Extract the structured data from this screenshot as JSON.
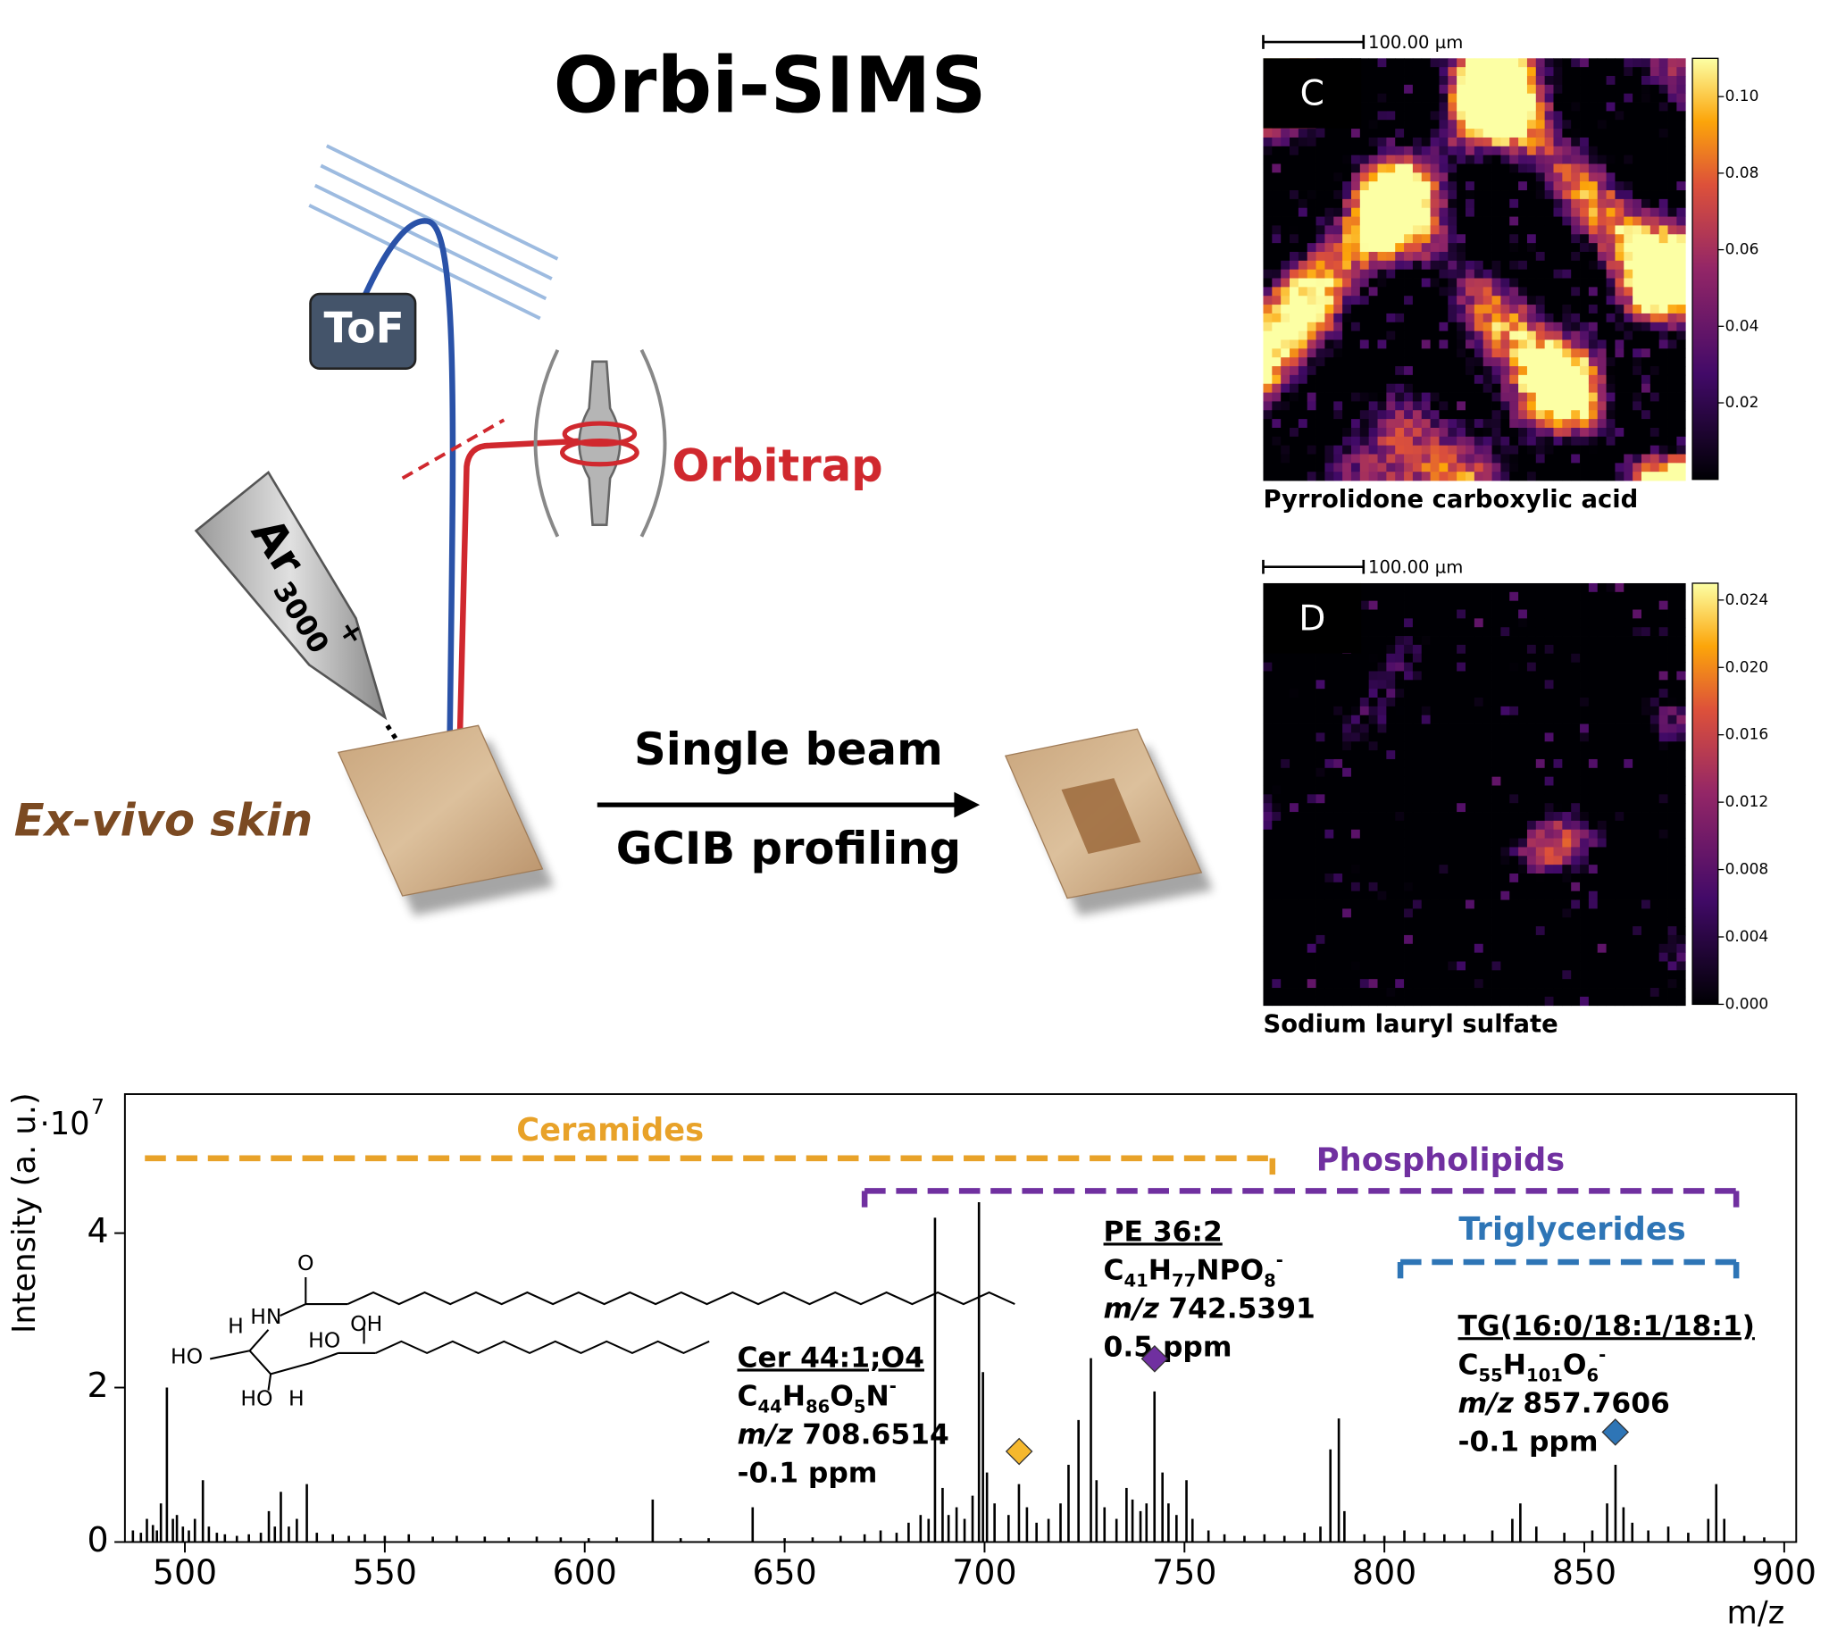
{
  "title": "Orbi-SIMS",
  "schematic": {
    "tof": "ToF",
    "orbitrap": "Orbitrap",
    "ion": "Ar",
    "ion_size": "3000",
    "ion_charge": "+",
    "sample": "Ex-vivo skin",
    "arrow_top": "Single beam",
    "arrow_bottom": "GCIB profiling"
  },
  "images": [
    {
      "label": "C",
      "scale_bar": "100.00 µm",
      "caption": "Pyrrolidone carboxylic acid",
      "colorbar": {
        "lim": [
          0,
          0.11
        ],
        "ticks": [
          0.02,
          0.04,
          0.06,
          0.08,
          {
            "value": 0.1,
            "label": "0.10"
          }
        ]
      }
    },
    {
      "label": "D",
      "scale_bar": "100.00 µm",
      "caption": "Sodium lauryl sulfate",
      "colorbar": {
        "lim": [
          0,
          0.025
        ],
        "ticks": [
          {
            "value": 0,
            "label": "0.000"
          },
          0.004,
          {
            "value": 0.008,
            "label": "0.008"
          },
          {
            "value": 0.012,
            "label": "0.012"
          },
          {
            "value": 0.016,
            "label": "0.016"
          },
          {
            "value": 0.02,
            "label": "0.020"
          },
          0.024
        ]
      }
    }
  ],
  "structure": {
    "labels": [
      "O",
      "HN",
      "H",
      "HO",
      "HO",
      "OH",
      "HO",
      "H"
    ]
  },
  "chart_data": {
    "type": "stem",
    "y_label": "Intensity (a. u.)",
    "x_label": "m/z",
    "y_multiplier_base": "·10",
    "y_multiplier_exponent": "7",
    "xlim": [
      485,
      903
    ],
    "ylim": [
      0,
      5.8
    ],
    "xticks": [
      500,
      550,
      600,
      650,
      700,
      750,
      800,
      850,
      900
    ],
    "yticks": [
      0,
      2,
      4
    ],
    "color": "#000000",
    "x": [
      487,
      489,
      490.5,
      492,
      493,
      494,
      495.5,
      497,
      498,
      499.5,
      501,
      502.5,
      504.5,
      506,
      508,
      510,
      513,
      516,
      519,
      521,
      522.5,
      524,
      526,
      528,
      530.5,
      533,
      537,
      541,
      545,
      550,
      556,
      562,
      568,
      575,
      581,
      588,
      594,
      601,
      608,
      617,
      624,
      631,
      642,
      650,
      657,
      664,
      670,
      674,
      678,
      681,
      684,
      686,
      687.6,
      689.5,
      691,
      693,
      695,
      697,
      698.6,
      699.6,
      700.6,
      702.5,
      706,
      708.6,
      710.6,
      713,
      716,
      719,
      721,
      723.5,
      726.6,
      728,
      730,
      733,
      735.5,
      737,
      739,
      740.5,
      742.5,
      744.5,
      746,
      748,
      750.5,
      752,
      756,
      760,
      765,
      770,
      775,
      780,
      784,
      786.5,
      788.6,
      790,
      795,
      800,
      805,
      810,
      815,
      820,
      827,
      832,
      834,
      838,
      845,
      852,
      855.7,
      857.8,
      859.8,
      862,
      866,
      871,
      876,
      881,
      883,
      885,
      890,
      895
    ],
    "values": [
      0.15,
      0.12,
      0.3,
      0.22,
      0.15,
      0.5,
      2.0,
      0.3,
      0.35,
      0.2,
      0.15,
      0.3,
      0.8,
      0.2,
      0.12,
      0.1,
      0.08,
      0.1,
      0.12,
      0.4,
      0.2,
      0.65,
      0.2,
      0.3,
      0.75,
      0.12,
      0.1,
      0.08,
      0.1,
      0.08,
      0.1,
      0.07,
      0.08,
      0.07,
      0.06,
      0.07,
      0.06,
      0.05,
      0.06,
      0.55,
      0.05,
      0.05,
      0.45,
      0.05,
      0.06,
      0.08,
      0.1,
      0.15,
      0.12,
      0.25,
      0.35,
      0.3,
      4.2,
      0.7,
      0.35,
      0.45,
      0.3,
      0.6,
      4.4,
      2.2,
      0.9,
      0.5,
      0.35,
      0.75,
      0.45,
      0.25,
      0.3,
      0.5,
      1.0,
      1.58,
      2.38,
      0.8,
      0.45,
      0.3,
      0.7,
      0.55,
      0.4,
      0.5,
      1.95,
      0.9,
      0.5,
      0.35,
      0.8,
      0.3,
      0.15,
      0.1,
      0.08,
      0.1,
      0.08,
      0.12,
      0.2,
      1.2,
      1.6,
      0.4,
      0.1,
      0.08,
      0.15,
      0.12,
      0.1,
      0.1,
      0.15,
      0.3,
      0.5,
      0.2,
      0.12,
      0.15,
      0.5,
      1.0,
      0.45,
      0.25,
      0.15,
      0.2,
      0.12,
      0.3,
      0.75,
      0.3,
      0.08,
      0.06
    ],
    "groups": [
      {
        "name": "Ceramides",
        "color": "#e8a229",
        "start": 490,
        "end": 772
      },
      {
        "name": "Phospholipids",
        "color": "#7030a0",
        "start": 670,
        "end": 888
      },
      {
        "name": "Triglycerides",
        "color": "#2e75b6",
        "start": 804,
        "end": 888
      }
    ],
    "annotations": [
      {
        "name": "Cer 44:1;O4",
        "color": "#f5b82e",
        "formula": [
          {
            "text": "C"
          },
          {
            "sub": "44"
          },
          {
            "text": "H"
          },
          {
            "sub": "86"
          },
          {
            "text": "O"
          },
          {
            "sub": "5"
          },
          {
            "text": "N"
          },
          {
            "sup": "-"
          }
        ],
        "mz_prefix": "m/z",
        "mz": 708.6514,
        "error": "-0.1 ppm"
      },
      {
        "name": "PE 36:2",
        "color": "#7030a0",
        "formula": [
          {
            "text": "C"
          },
          {
            "sub": "41"
          },
          {
            "text": "H"
          },
          {
            "sub": "77"
          },
          {
            "text": "NPO"
          },
          {
            "sub": "8"
          },
          {
            "sup": "-"
          }
        ],
        "mz_prefix": "m/z",
        "mz": 742.5391,
        "error": "0.5 ppm"
      },
      {
        "name": "TG(16:0/18:1/18:1)",
        "color": "#2e75b6",
        "formula": [
          {
            "text": "C"
          },
          {
            "sub": "55"
          },
          {
            "text": "H"
          },
          {
            "sub": "101"
          },
          {
            "text": "O"
          },
          {
            "sub": "6"
          },
          {
            "sup": "-"
          }
        ],
        "mz_prefix": "m/z",
        "mz": 857.7606,
        "error": "-0.1 ppm"
      }
    ]
  }
}
